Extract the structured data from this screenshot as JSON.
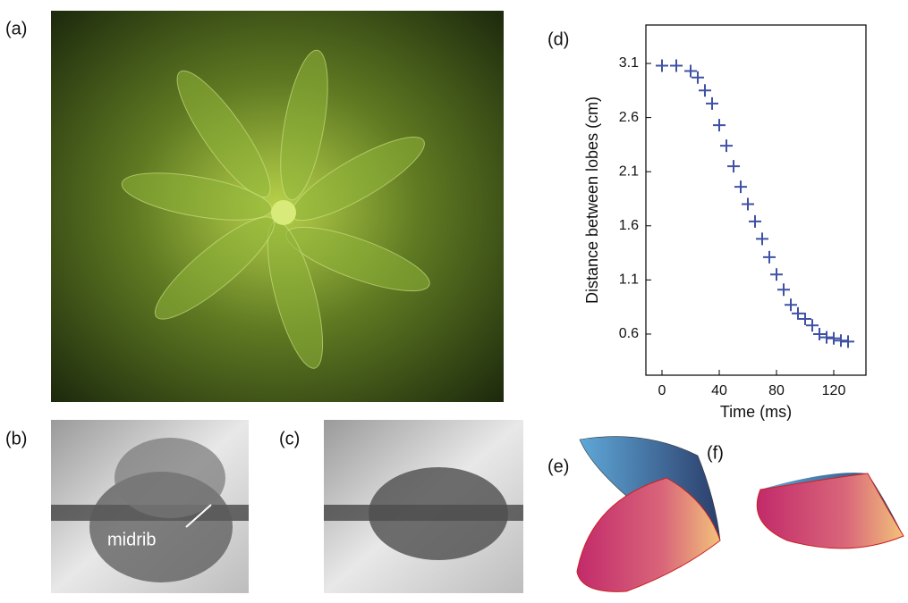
{
  "panels": {
    "a": "(a)",
    "b": "(b)",
    "c": "(c)",
    "d": "(d)",
    "e": "(e)",
    "f": "(f)"
  },
  "annotations": {
    "midrib": "midrib"
  },
  "chart_data": {
    "type": "scatter",
    "xlabel": "Time (ms)",
    "ylabel": "Distance between lobes (cm)",
    "x": [
      0,
      10,
      20,
      25,
      30,
      35,
      40,
      45,
      50,
      55,
      60,
      65,
      70,
      75,
      80,
      85,
      90,
      95,
      100,
      105,
      110,
      115,
      120,
      125,
      130
    ],
    "series": [
      {
        "color": "#3f51a5",
        "values": [
          3.08,
          3.08,
          3.03,
          2.97,
          2.85,
          2.73,
          2.53,
          2.34,
          2.15,
          1.96,
          1.8,
          1.64,
          1.48,
          1.31,
          1.15,
          1.01,
          0.87,
          0.79,
          0.74,
          0.68,
          0.6,
          0.57,
          0.56,
          0.54,
          0.53
        ]
      }
    ],
    "xlim": [
      -11.25,
      142.5
    ],
    "ylim": [
      0.22,
      3.455
    ],
    "xticks": [
      0,
      40,
      80,
      120
    ],
    "yticks": [
      0.6,
      1.1,
      1.6,
      2.1,
      2.6,
      3.1
    ]
  }
}
